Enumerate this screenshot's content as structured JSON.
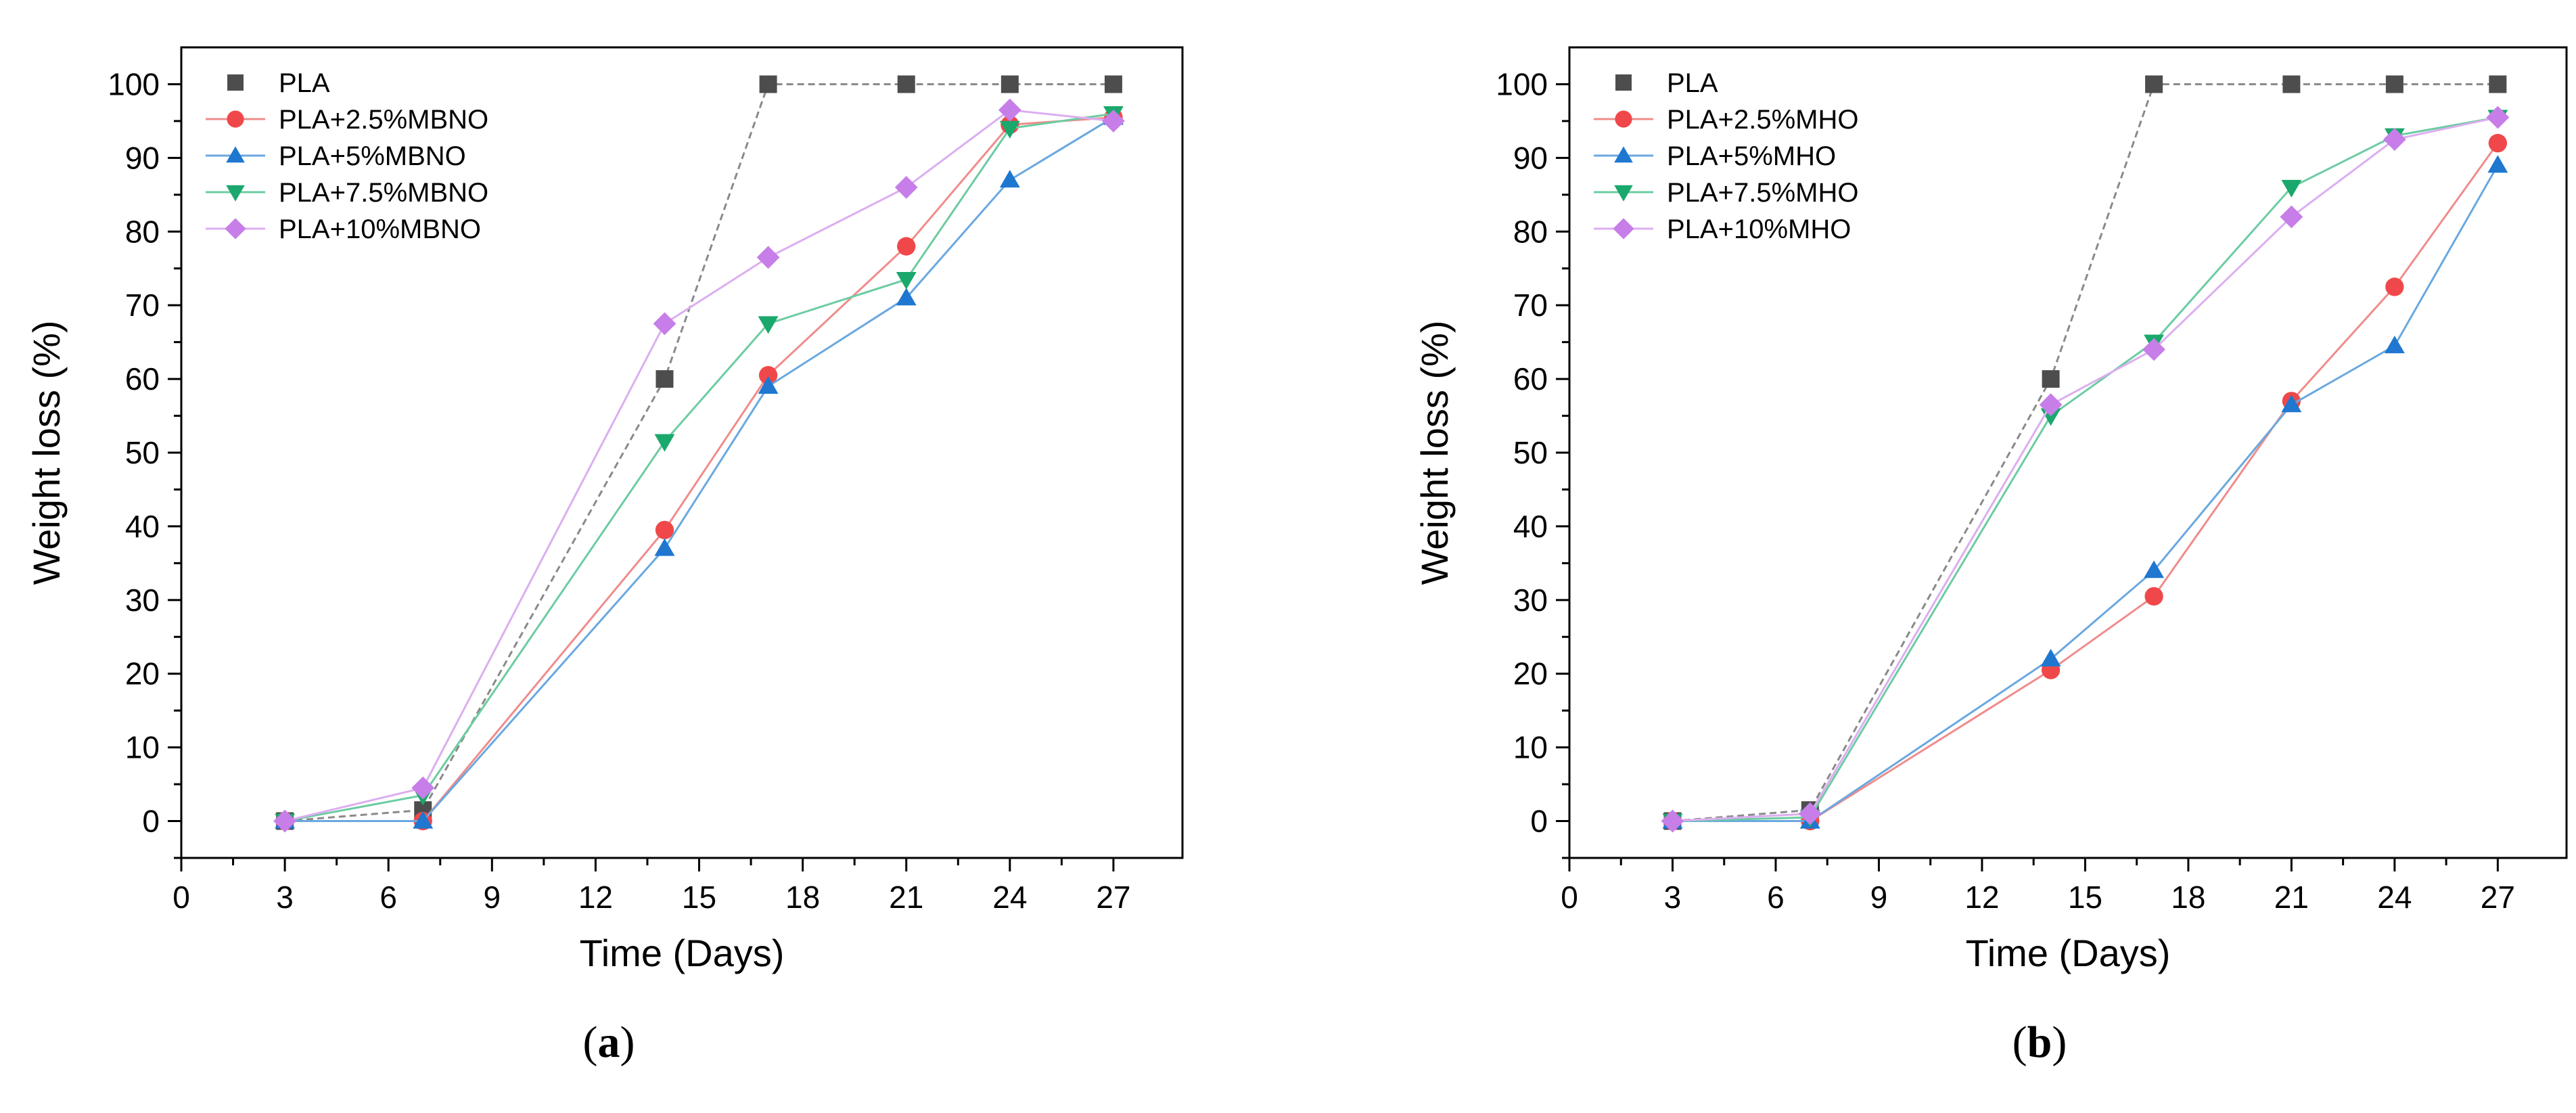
{
  "chart_data": [
    {
      "type": "line",
      "panel_label": "a",
      "xlabel": "Time (Days)",
      "ylabel": "Weight loss (%)",
      "xlim": [
        0,
        29
      ],
      "ylim": [
        -5,
        105
      ],
      "xticks": [
        0,
        3,
        6,
        9,
        12,
        15,
        18,
        21,
        24,
        27
      ],
      "yticks": [
        0,
        10,
        20,
        30,
        40,
        50,
        60,
        70,
        80,
        90,
        100
      ],
      "legend_position": "top-left",
      "series": [
        {
          "name": "PLA",
          "marker": "square",
          "color": "#4d4d4d",
          "line_color": "#8a8a8a",
          "x": [
            3,
            7,
            14,
            17,
            21,
            24,
            27
          ],
          "y": [
            0,
            1.5,
            60,
            100,
            100,
            100,
            100
          ]
        },
        {
          "name": "PLA+2.5%MBNO",
          "marker": "circle",
          "color": "#f0484a",
          "line_color": "#f08c8c",
          "x": [
            3,
            7,
            14,
            17,
            21,
            24,
            27
          ],
          "y": [
            0,
            0,
            39.5,
            60.5,
            78,
            94.5,
            95.5
          ]
        },
        {
          "name": "PLA+5%MBNO",
          "marker": "triangle-up",
          "color": "#1f77d0",
          "line_color": "#6aa8e0",
          "x": [
            3,
            7,
            14,
            17,
            21,
            24,
            27
          ],
          "y": [
            0,
            0,
            37,
            59,
            71,
            87,
            95.5
          ]
        },
        {
          "name": "PLA+7.5%MBNO",
          "marker": "triangle-down",
          "color": "#1aa86c",
          "line_color": "#6ccca2",
          "x": [
            3,
            7,
            14,
            17,
            21,
            24,
            27
          ],
          "y": [
            0,
            3.5,
            51.5,
            67.5,
            73.5,
            94,
            96
          ]
        },
        {
          "name": "PLA+10%MBNO",
          "marker": "diamond",
          "color": "#c77ee8",
          "line_color": "#dcaef0",
          "x": [
            3,
            7,
            14,
            17,
            21,
            24,
            27
          ],
          "y": [
            0,
            4.5,
            67.5,
            76.5,
            86,
            96.5,
            95
          ]
        }
      ]
    },
    {
      "type": "line",
      "panel_label": "b",
      "xlabel": "Time (Days)",
      "ylabel": "Weight loss (%)",
      "xlim": [
        0,
        29
      ],
      "ylim": [
        -5,
        105
      ],
      "xticks": [
        0,
        3,
        6,
        9,
        12,
        15,
        18,
        21,
        24,
        27
      ],
      "yticks": [
        0,
        10,
        20,
        30,
        40,
        50,
        60,
        70,
        80,
        90,
        100
      ],
      "legend_position": "top-left",
      "series": [
        {
          "name": "PLA",
          "marker": "square",
          "color": "#4d4d4d",
          "line_color": "#8a8a8a",
          "x": [
            3,
            7,
            14,
            17,
            21,
            24,
            27
          ],
          "y": [
            0,
            1.5,
            60,
            100,
            100,
            100,
            100
          ]
        },
        {
          "name": "PLA+2.5%MHO",
          "marker": "circle",
          "color": "#f0484a",
          "line_color": "#f08c8c",
          "x": [
            3,
            7,
            14,
            17,
            21,
            24,
            27
          ],
          "y": [
            0,
            0,
            20.5,
            30.5,
            57,
            72.5,
            92
          ]
        },
        {
          "name": "PLA+5%MHO",
          "marker": "triangle-up",
          "color": "#1f77d0",
          "line_color": "#6aa8e0",
          "x": [
            3,
            7,
            14,
            17,
            21,
            24,
            27
          ],
          "y": [
            0,
            0,
            22,
            34,
            56.5,
            64.5,
            89
          ]
        },
        {
          "name": "PLA+7.5%MHO",
          "marker": "triangle-down",
          "color": "#1aa86c",
          "line_color": "#6ccca2",
          "x": [
            3,
            7,
            14,
            17,
            21,
            24,
            27
          ],
          "y": [
            0,
            0.5,
            55,
            65,
            86,
            93,
            95.5
          ]
        },
        {
          "name": "PLA+10%MHO",
          "marker": "diamond",
          "color": "#c77ee8",
          "line_color": "#dcaef0",
          "x": [
            3,
            7,
            14,
            17,
            21,
            24,
            27
          ],
          "y": [
            0,
            1,
            56.5,
            64,
            82,
            92.5,
            95.5
          ]
        }
      ]
    }
  ]
}
